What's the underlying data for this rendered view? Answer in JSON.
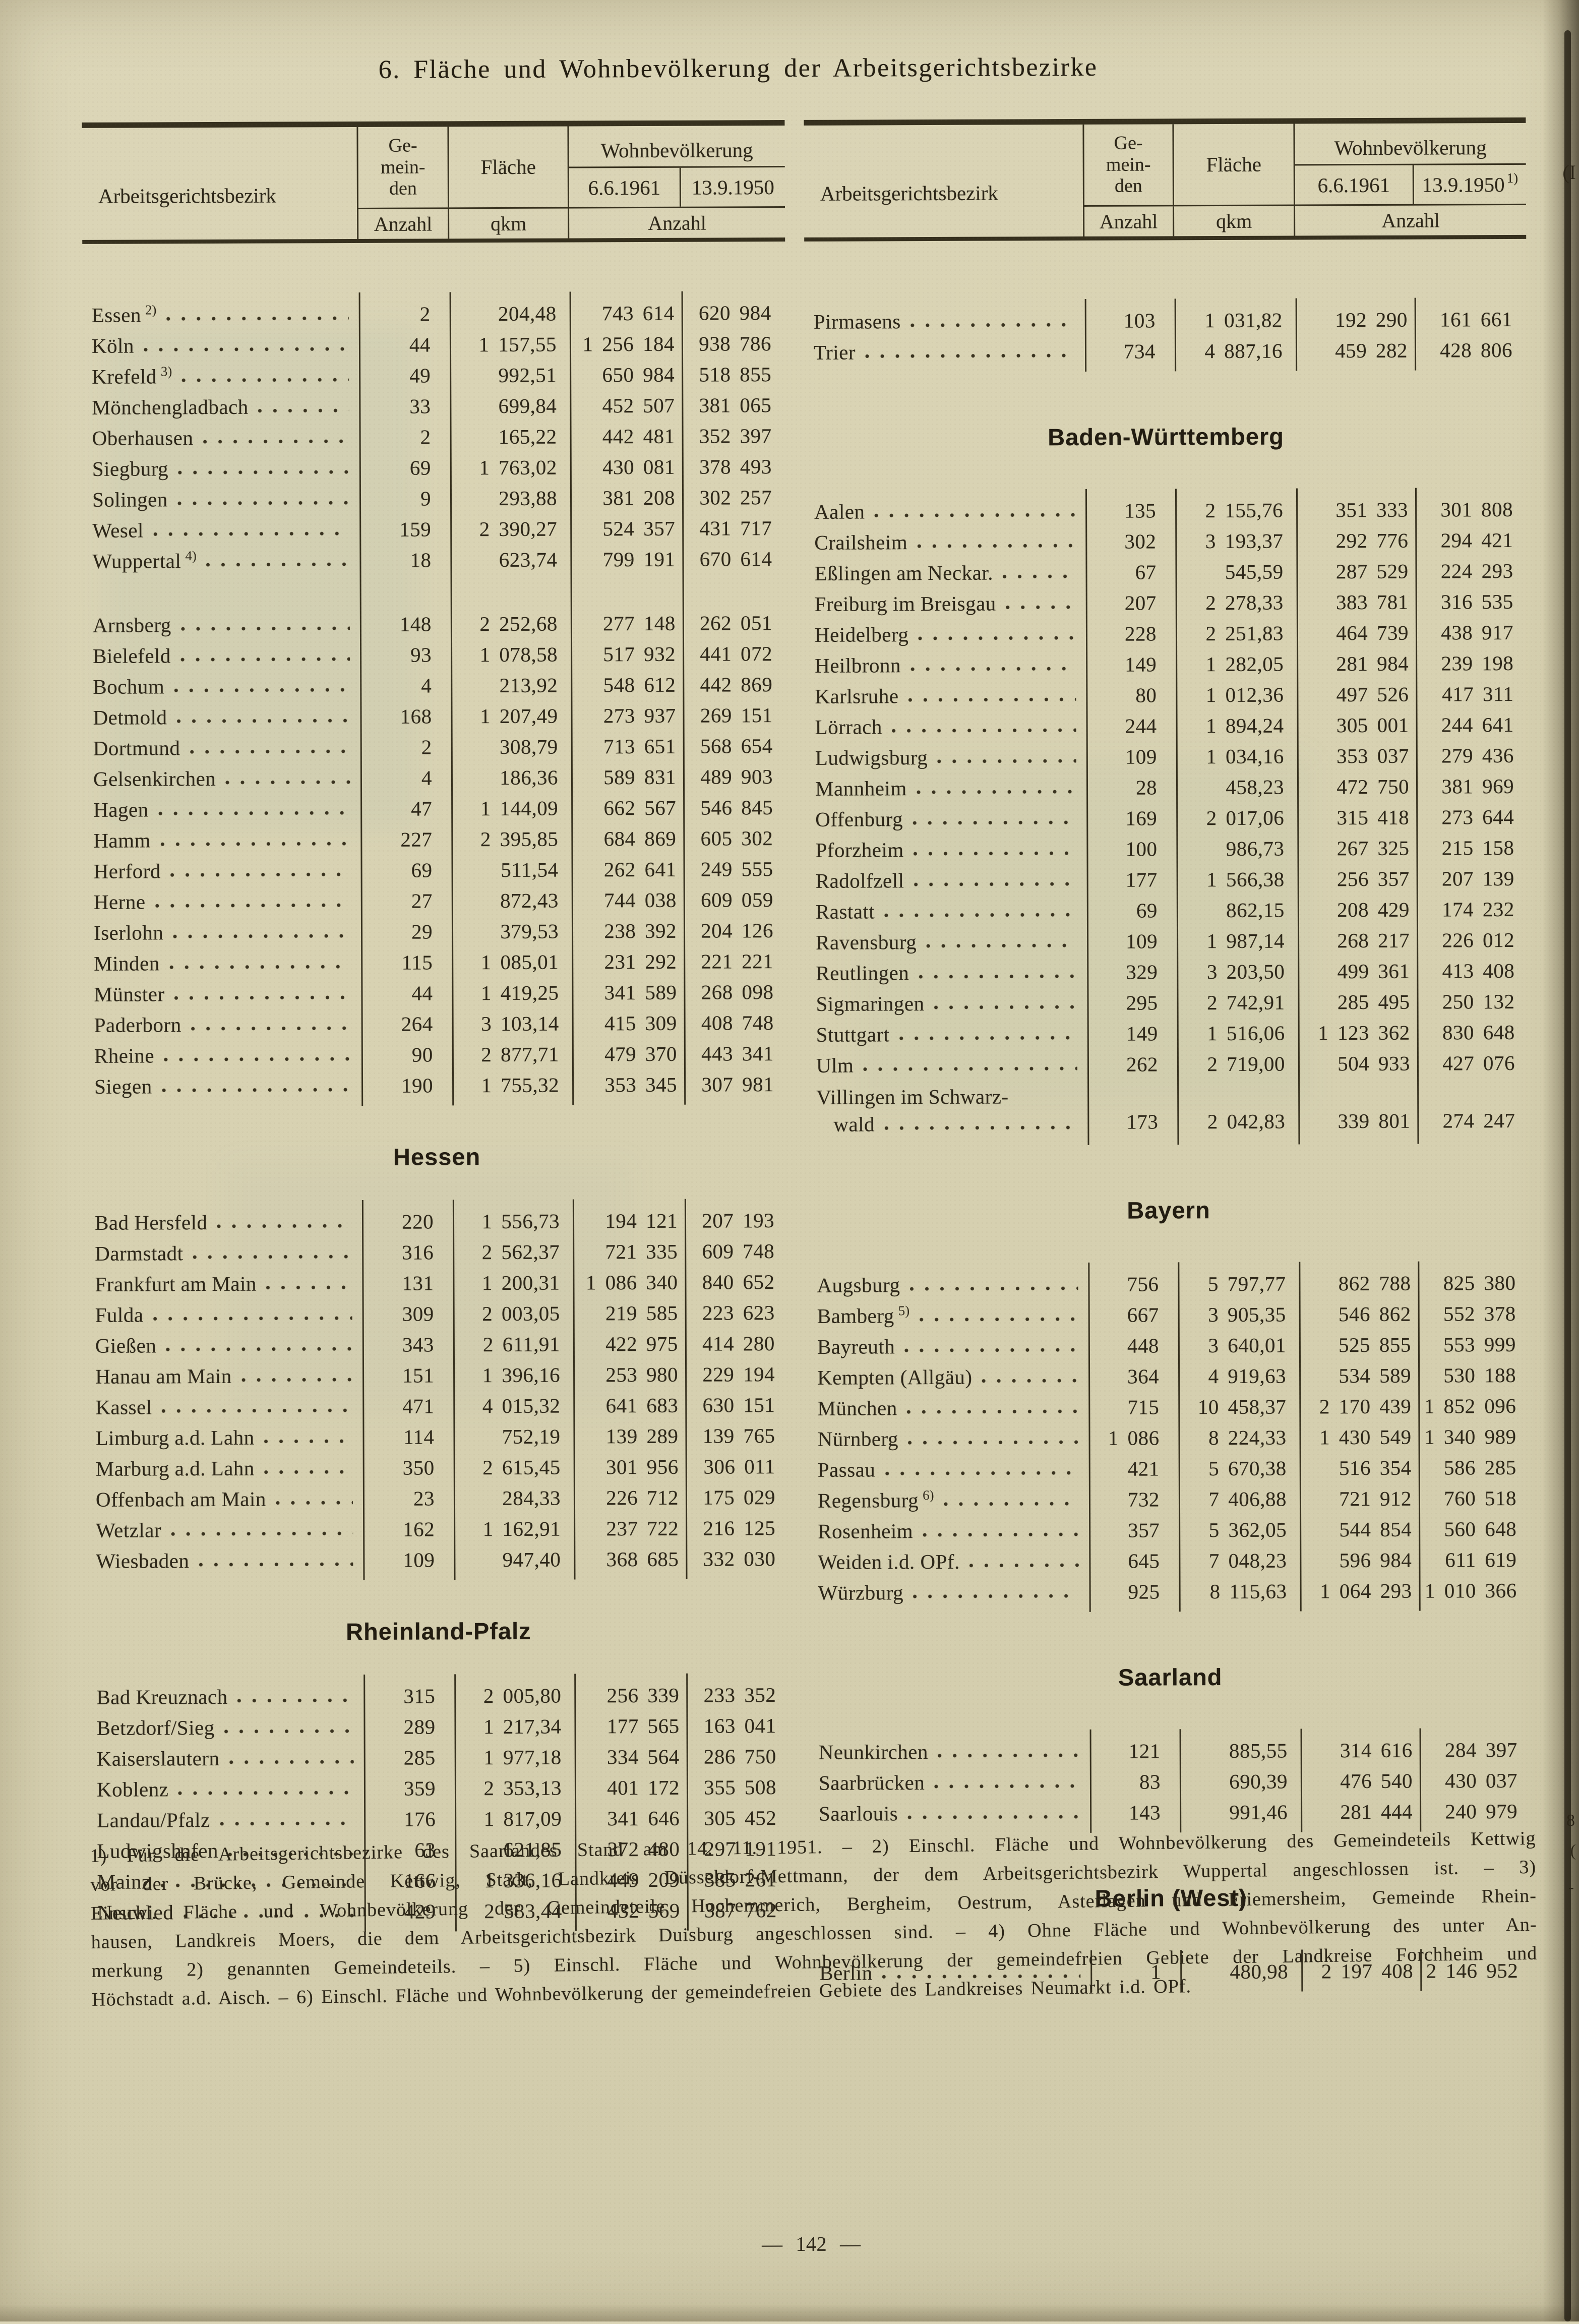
{
  "page": {
    "title": "6. Fläche und Wohnbevölkerung der Arbeitsgerichtsbezirke",
    "page_number": "— 142 —",
    "edge_fragments": [
      "(I",
      "8",
      "(",
      "-"
    ]
  },
  "table_header": {
    "col_district": "Arbeitsgerichtsbezirk",
    "gem_lines": [
      "Ge-",
      "mein-",
      "den"
    ],
    "col_area": "Fläche",
    "col_population": "Wohnbevölkerung",
    "col_date1": "6.6.1961",
    "col_date2": "13.9.1950",
    "col_date2_sup": "1)",
    "unit_count": "Anzahl",
    "unit_area": "qkm",
    "unit_number": "Anzahl"
  },
  "left_table": {
    "sections": [
      {
        "header": null,
        "groups": [
          {
            "rows": [
              {
                "name": "Essen",
                "sup": "2)",
                "count": "2",
                "area": "204,48",
                "pop61": "743 614",
                "pop50": "620 984"
              },
              {
                "name": "Köln",
                "count": "44",
                "area": "1 157,55",
                "pop61": "1 256 184",
                "pop50": "938 786"
              },
              {
                "name": "Krefeld",
                "sup": "3)",
                "count": "49",
                "area": "992,51",
                "pop61": "650 984",
                "pop50": "518 855"
              },
              {
                "name": "Mönchengladbach",
                "count": "33",
                "area": "699,84",
                "pop61": "452 507",
                "pop50": "381 065"
              },
              {
                "name": "Oberhausen",
                "count": "2",
                "area": "165,22",
                "pop61": "442 481",
                "pop50": "352 397"
              },
              {
                "name": "Siegburg",
                "count": "69",
                "area": "1 763,02",
                "pop61": "430 081",
                "pop50": "378 493"
              },
              {
                "name": "Solingen",
                "count": "9",
                "area": "293,88",
                "pop61": "381 208",
                "pop50": "302 257"
              },
              {
                "name": "Wesel",
                "count": "159",
                "area": "2 390,27",
                "pop61": "524 357",
                "pop50": "431 717"
              },
              {
                "name": "Wuppertal",
                "sup": "4)",
                "count": "18",
                "area": "623,74",
                "pop61": "799 191",
                "pop50": "670 614"
              },
              {
                "spacer": true
              },
              {
                "name": "Arnsberg",
                "count": "148",
                "area": "2 252,68",
                "pop61": "277 148",
                "pop50": "262 051"
              },
              {
                "name": "Bielefeld",
                "count": "93",
                "area": "1 078,58",
                "pop61": "517 932",
                "pop50": "441 072"
              },
              {
                "name": "Bochum",
                "count": "4",
                "area": "213,92",
                "pop61": "548 612",
                "pop50": "442 869"
              },
              {
                "name": "Detmold",
                "count": "168",
                "area": "1 207,49",
                "pop61": "273 937",
                "pop50": "269 151"
              },
              {
                "name": "Dortmund",
                "count": "2",
                "area": "308,79",
                "pop61": "713 651",
                "pop50": "568 654"
              },
              {
                "name": "Gelsenkirchen",
                "count": "4",
                "area": "186,36",
                "pop61": "589 831",
                "pop50": "489 903"
              },
              {
                "name": "Hagen",
                "count": "47",
                "area": "1 144,09",
                "pop61": "662 567",
                "pop50": "546 845"
              },
              {
                "name": "Hamm",
                "count": "227",
                "area": "2 395,85",
                "pop61": "684 869",
                "pop50": "605 302"
              },
              {
                "name": "Herford",
                "count": "69",
                "area": "511,54",
                "pop61": "262 641",
                "pop50": "249 555"
              },
              {
                "name": "Herne",
                "count": "27",
                "area": "872,43",
                "pop61": "744 038",
                "pop50": "609 059"
              },
              {
                "name": "Iserlohn",
                "count": "29",
                "area": "379,53",
                "pop61": "238 392",
                "pop50": "204 126"
              },
              {
                "name": "Minden",
                "count": "115",
                "area": "1 085,01",
                "pop61": "231 292",
                "pop50": "221 221"
              },
              {
                "name": "Münster",
                "count": "44",
                "area": "1 419,25",
                "pop61": "341 589",
                "pop50": "268 098"
              },
              {
                "name": "Paderborn",
                "count": "264",
                "area": "3 103,14",
                "pop61": "415 309",
                "pop50": "408 748"
              },
              {
                "name": "Rheine",
                "count": "90",
                "area": "2 877,71",
                "pop61": "479 370",
                "pop50": "443 341"
              },
              {
                "name": "Siegen",
                "count": "190",
                "area": "1 755,32",
                "pop61": "353 345",
                "pop50": "307 981"
              }
            ]
          }
        ]
      },
      {
        "header": "Hessen",
        "groups": [
          {
            "rows": [
              {
                "name": "Bad Hersfeld",
                "count": "220",
                "area": "1 556,73",
                "pop61": "194 121",
                "pop50": "207 193"
              },
              {
                "name": "Darmstadt",
                "count": "316",
                "area": "2 562,37",
                "pop61": "721 335",
                "pop50": "609 748"
              },
              {
                "name": "Frankfurt am Main",
                "count": "131",
                "area": "1 200,31",
                "pop61": "1 086 340",
                "pop50": "840 652"
              },
              {
                "name": "Fulda",
                "count": "309",
                "area": "2 003,05",
                "pop61": "219 585",
                "pop50": "223 623"
              },
              {
                "name": "Gießen",
                "count": "343",
                "area": "2 611,91",
                "pop61": "422 975",
                "pop50": "414 280"
              },
              {
                "name": "Hanau am Main",
                "count": "151",
                "area": "1 396,16",
                "pop61": "253 980",
                "pop50": "229 194"
              },
              {
                "name": "Kassel",
                "count": "471",
                "area": "4 015,32",
                "pop61": "641 683",
                "pop50": "630 151"
              },
              {
                "name": "Limburg a.d. Lahn",
                "count": "114",
                "area": "752,19",
                "pop61": "139 289",
                "pop50": "139 765"
              },
              {
                "name": "Marburg a.d. Lahn",
                "count": "350",
                "area": "2 615,45",
                "pop61": "301 956",
                "pop50": "306 011"
              },
              {
                "name": "Offenbach am Main",
                "count": "23",
                "area": "284,33",
                "pop61": "226 712",
                "pop50": "175 029"
              },
              {
                "name": "Wetzlar",
                "count": "162",
                "area": "1 162,91",
                "pop61": "237 722",
                "pop50": "216 125"
              },
              {
                "name": "Wiesbaden",
                "count": "109",
                "area": "947,40",
                "pop61": "368 685",
                "pop50": "332 030"
              }
            ]
          }
        ]
      },
      {
        "header": "Rheinland-Pfalz",
        "groups": [
          {
            "rows": [
              {
                "name": "Bad Kreuznach",
                "count": "315",
                "area": "2 005,80",
                "pop61": "256 339",
                "pop50": "233 352"
              },
              {
                "name": "Betzdorf/Sieg",
                "count": "289",
                "area": "1 217,34",
                "pop61": "177 565",
                "pop50": "163 041"
              },
              {
                "name": "Kaiserslautern",
                "count": "285",
                "area": "1 977,18",
                "pop61": "334 564",
                "pop50": "286 750"
              },
              {
                "name": "Koblenz",
                "count": "359",
                "area": "2 353,13",
                "pop61": "401 172",
                "pop50": "355 508"
              },
              {
                "name": "Landau/Pfalz",
                "count": "176",
                "area": "1 817,09",
                "pop61": "341 646",
                "pop50": "305 452"
              },
              {
                "name": "Ludwigshafen",
                "count": "63",
                "area": "621,85",
                "pop61": "372 480",
                "pop50": "297 191"
              },
              {
                "name": "Mainz",
                "count": "166",
                "area": "1 336,16",
                "pop61": "449 209",
                "pop50": "385 261"
              },
              {
                "name": "Neuwied",
                "count": "429",
                "area": "2 583,44",
                "pop61": "432 569",
                "pop50": "387 762"
              }
            ]
          }
        ]
      }
    ]
  },
  "right_table": {
    "sections": [
      {
        "header": null,
        "groups": [
          {
            "rows": [
              {
                "name": "Pirmasens",
                "count": "103",
                "area": "1 031,82",
                "pop61": "192 290",
                "pop50": "161 661"
              },
              {
                "name": "Trier",
                "count": "734",
                "area": "4 887,16",
                "pop61": "459 282",
                "pop50": "428 806"
              }
            ]
          }
        ]
      },
      {
        "header": "Baden-Württemberg",
        "groups": [
          {
            "rows": [
              {
                "name": "Aalen",
                "count": "135",
                "area": "2 155,76",
                "pop61": "351 333",
                "pop50": "301 808"
              },
              {
                "name": "Crailsheim",
                "count": "302",
                "area": "3 193,37",
                "pop61": "292 776",
                "pop50": "294 421"
              },
              {
                "name": "Eßlingen am Neckar.",
                "count": "67",
                "area": "545,59",
                "pop61": "287 529",
                "pop50": "224 293"
              },
              {
                "name": "Freiburg im Breisgau",
                "count": "207",
                "area": "2 278,33",
                "pop61": "383 781",
                "pop50": "316 535"
              },
              {
                "name": "Heidelberg",
                "count": "228",
                "area": "2 251,83",
                "pop61": "464 739",
                "pop50": "438 917"
              },
              {
                "name": "Heilbronn",
                "count": "149",
                "area": "1 282,05",
                "pop61": "281 984",
                "pop50": "239 198"
              },
              {
                "name": "Karlsruhe",
                "count": "80",
                "area": "1 012,36",
                "pop61": "497 526",
                "pop50": "417 311"
              },
              {
                "name": "Lörrach",
                "count": "244",
                "area": "1 894,24",
                "pop61": "305 001",
                "pop50": "244 641"
              },
              {
                "name": "Ludwigsburg",
                "count": "109",
                "area": "1 034,16",
                "pop61": "353 037",
                "pop50": "279 436"
              },
              {
                "name": "Mannheim",
                "count": "28",
                "area": "458,23",
                "pop61": "472 750",
                "pop50": "381 969"
              },
              {
                "name": "Offenburg",
                "count": "169",
                "area": "2 017,06",
                "pop61": "315 418",
                "pop50": "273 644"
              },
              {
                "name": "Pforzheim",
                "count": "100",
                "area": "986,73",
                "pop61": "267 325",
                "pop50": "215 158"
              },
              {
                "name": "Radolfzell",
                "count": "177",
                "area": "1 566,38",
                "pop61": "256 357",
                "pop50": "207 139"
              },
              {
                "name": "Rastatt",
                "count": "69",
                "area": "862,15",
                "pop61": "208 429",
                "pop50": "174 232"
              },
              {
                "name": "Ravensburg",
                "count": "109",
                "area": "1 987,14",
                "pop61": "268 217",
                "pop50": "226 012"
              },
              {
                "name": "Reutlingen",
                "count": "329",
                "area": "3 203,50",
                "pop61": "499 361",
                "pop50": "413 408"
              },
              {
                "name": "Sigmaringen",
                "count": "295",
                "area": "2 742,91",
                "pop61": "285 495",
                "pop50": "250 132"
              },
              {
                "name": "Stuttgart",
                "count": "149",
                "area": "1 516,06",
                "pop61": "1 123 362",
                "pop50": "830 648"
              },
              {
                "name": "Ulm",
                "count": "262",
                "area": "2 719,00",
                "pop61": "504 933",
                "pop50": "427 076"
              },
              {
                "name": "Villingen im Schwarz-",
                "name2": "wald",
                "count": "173",
                "area": "2 042,83",
                "pop61": "339 801",
                "pop50": "274 247"
              }
            ]
          }
        ]
      },
      {
        "header": "Bayern",
        "groups": [
          {
            "rows": [
              {
                "name": "Augsburg",
                "count": "756",
                "area": "5 797,77",
                "pop61": "862 788",
                "pop50": "825 380"
              },
              {
                "name": "Bamberg",
                "sup": "5)",
                "count": "667",
                "area": "3 905,35",
                "pop61": "546 862",
                "pop50": "552 378"
              },
              {
                "name": "Bayreuth",
                "count": "448",
                "area": "3 640,01",
                "pop61": "525 855",
                "pop50": "553 999"
              },
              {
                "name": "Kempten (Allgäu)",
                "count": "364",
                "area": "4 919,63",
                "pop61": "534 589",
                "pop50": "530 188"
              },
              {
                "name": "München",
                "count": "715",
                "area": "10 458,37",
                "pop61": "2 170 439",
                "pop50": "1 852 096"
              },
              {
                "name": "Nürnberg",
                "count": "1 086",
                "area": "8 224,33",
                "pop61": "1 430 549",
                "pop50": "1 340 989"
              },
              {
                "name": "Passau",
                "count": "421",
                "area": "5 670,38",
                "pop61": "516 354",
                "pop50": "586 285"
              },
              {
                "name": "Regensburg",
                "sup": "6)",
                "count": "732",
                "area": "7 406,88",
                "pop61": "721 912",
                "pop50": "760 518"
              },
              {
                "name": "Rosenheim",
                "count": "357",
                "area": "5 362,05",
                "pop61": "544 854",
                "pop50": "560 648"
              },
              {
                "name": "Weiden i.d. OPf.",
                "count": "645",
                "area": "7 048,23",
                "pop61": "596 984",
                "pop50": "611 619"
              },
              {
                "name": "Würzburg",
                "count": "925",
                "area": "8 115,63",
                "pop61": "1 064 293",
                "pop50": "1 010 366"
              }
            ]
          }
        ]
      },
      {
        "header": "Saarland",
        "groups": [
          {
            "rows": [
              {
                "name": "Neunkirchen",
                "count": "121",
                "area": "885,55",
                "pop61": "314 616",
                "pop50": "284 397"
              },
              {
                "name": "Saarbrücken",
                "count": "83",
                "area": "690,39",
                "pop61": "476 540",
                "pop50": "430 037"
              },
              {
                "name": "Saarlouis",
                "count": "143",
                "area": "991,46",
                "pop61": "281 444",
                "pop50": "240 979"
              }
            ]
          }
        ]
      },
      {
        "header": "Berlin (West)",
        "groups": [
          {
            "rows": [
              {
                "name": "Berlin",
                "count": "1",
                "area": "480,98",
                "pop61": "2 197 408",
                "pop50": "2 146 952"
              }
            ]
          }
        ]
      }
    ]
  },
  "footnotes": [
    "1) Für die Arbeitsgerichtsbezirke des Saarlandes Stand am 14. 11. 1951. – 2) Einschl. Fläche und Wohnbevölkerung des Gemeindeteils Kettwig",
    "vor der Brücke, Gemeinde Kettwig, Stadt, Landkreis Düsseldorf-Mettmann, der dem Arbeitsgerichtsbezirk Wuppertal angeschlossen ist. – 3)",
    "Einschl. Fläche und Wohnbevölkerung der Gemeindeteile Hochemmerich, Bergheim, Oestrum, Asterlagen und Friemersheim, Gemeinde Rhein-",
    "hausen, Landkreis Moers, die dem Arbeitsgerichtsbezirk Duisburg angeschlossen sind. – 4) Ohne Fläche und Wohnbevölkerung des unter An-",
    "merkung 2) genannten Gemeindeteils. – 5) Einschl. Fläche und Wohnbevölkerung der gemeindefreien Gebiete der Landkreise Forchheim und",
    "Höchstadt a.d. Aisch. – 6) Einschl. Fläche und Wohnbevölkerung der gemeindefreien Gebiete des Landkreises Neumarkt i.d. OPf."
  ]
}
